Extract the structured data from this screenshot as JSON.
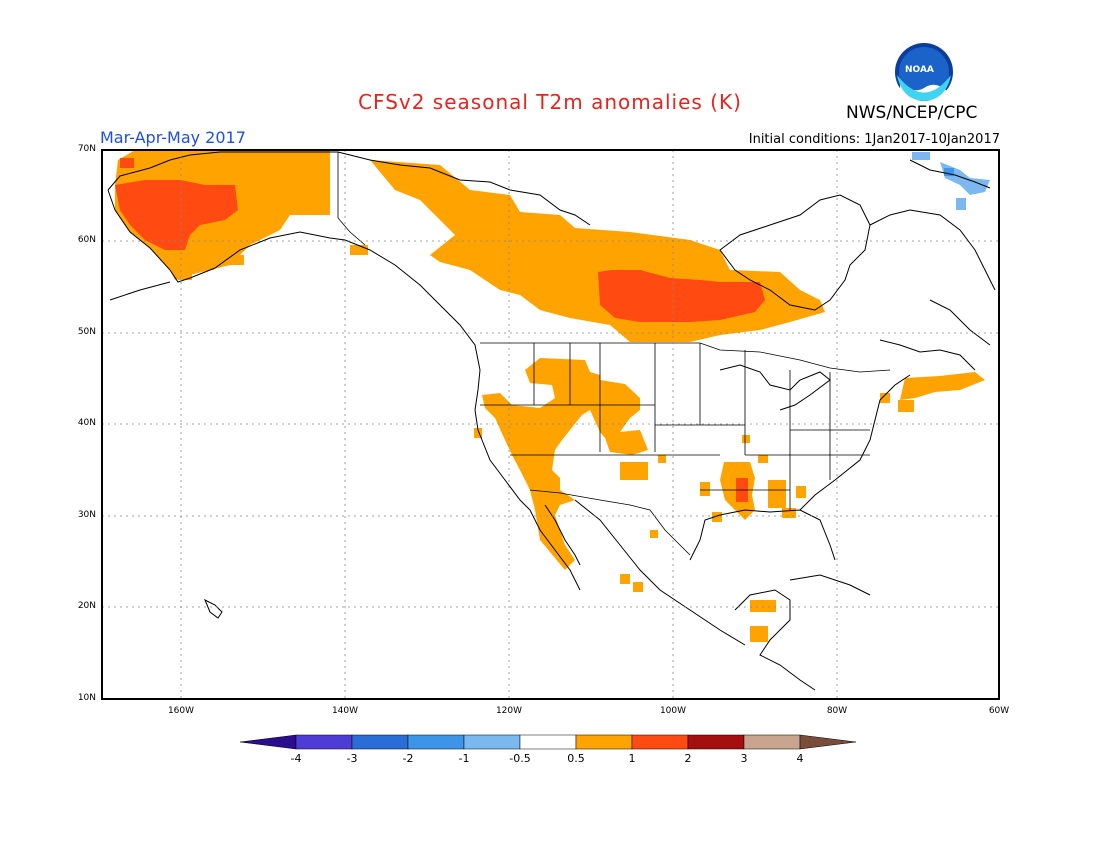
{
  "title": "CFSv2 seasonal T2m anomalies (K)",
  "agency": "NWS/NCEP/CPC",
  "logo_text": "NOAA",
  "season": "Mar-Apr-May 2017",
  "initial_conditions": "Initial conditions: 1Jan2017-10Jan2017",
  "lat_labels": [
    "70N",
    "60N",
    "50N",
    "40N",
    "30N",
    "20N",
    "10N"
  ],
  "lon_labels": [
    "160W",
    "140W",
    "120W",
    "100W",
    "80W",
    "60W"
  ],
  "colorbar": {
    "labels": [
      "-4",
      "-3",
      "-2",
      "-1",
      "-0.5",
      "0.5",
      "1",
      "2",
      "3",
      "4"
    ],
    "colors": [
      "#2a0e8f",
      "#4d3dd6",
      "#2a6cd8",
      "#3d95ea",
      "#7cb8f0",
      "#ffffff",
      "#ffa300",
      "#ff4a12",
      "#a50f0f",
      "#c9a48e",
      "#7a4c3a"
    ]
  }
}
